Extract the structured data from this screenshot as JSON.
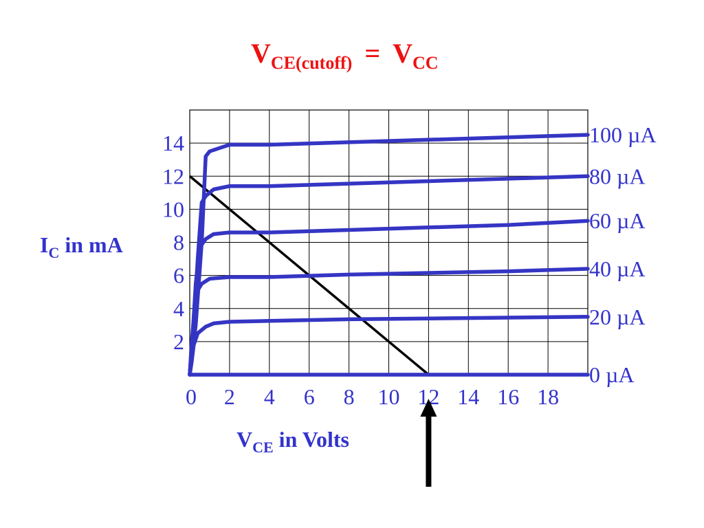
{
  "chart_data": {
    "type": "line",
    "title": {
      "main": "V",
      "sub": "CE(cutoff)",
      "eq": "=",
      "main2": "V",
      "sub2": "CC"
    },
    "xlabel": {
      "main": "V",
      "sub": "CE",
      "rest": " in Volts"
    },
    "ylabel": {
      "main": "I",
      "sub": "C",
      "rest": " in mA"
    },
    "xlim": [
      0,
      20
    ],
    "ylim": [
      0,
      16
    ],
    "x_ticks": [
      0,
      2,
      4,
      6,
      8,
      10,
      12,
      14,
      16,
      18
    ],
    "y_ticks": [
      2,
      4,
      6,
      8,
      10,
      12,
      14
    ],
    "grid": true,
    "colors": {
      "curves": "#3535c4",
      "text": "#3333cc",
      "title": "#ee1111",
      "load_line": "#000000",
      "grid": "#000000"
    },
    "series": [
      {
        "name": "100 µA",
        "x": [
          0,
          0.3,
          0.6,
          0.8,
          1.0,
          1.5,
          2,
          4,
          8,
          12,
          16,
          20
        ],
        "y": [
          0,
          3,
          8,
          13.2,
          13.5,
          13.7,
          13.9,
          13.9,
          14.05,
          14.2,
          14.35,
          14.5
        ]
      },
      {
        "name": "80 µA",
        "x": [
          0,
          0.2,
          0.4,
          0.6,
          0.8,
          1.2,
          2,
          4,
          8,
          12,
          16,
          20
        ],
        "y": [
          0,
          3,
          7,
          10.4,
          10.8,
          11.2,
          11.4,
          11.4,
          11.55,
          11.7,
          11.85,
          12
        ]
      },
      {
        "name": "60 µA",
        "x": [
          0,
          0.15,
          0.3,
          0.5,
          0.8,
          1.2,
          2,
          4,
          8,
          12,
          16,
          20
        ],
        "y": [
          0,
          2.5,
          5.5,
          7.7,
          8.2,
          8.5,
          8.6,
          8.6,
          8.75,
          8.9,
          9.05,
          9.3
        ]
      },
      {
        "name": "40 µA",
        "x": [
          0,
          0.1,
          0.25,
          0.4,
          0.6,
          1.0,
          2,
          4,
          8,
          12,
          16,
          20
        ],
        "y": [
          0,
          2,
          4,
          5.1,
          5.5,
          5.8,
          5.9,
          5.9,
          6.05,
          6.15,
          6.25,
          6.4
        ]
      },
      {
        "name": "20 µA",
        "x": [
          0,
          0.1,
          0.2,
          0.4,
          0.8,
          1.2,
          2,
          4,
          8,
          12,
          16,
          20
        ],
        "y": [
          0,
          0.8,
          1.8,
          2.5,
          2.9,
          3.1,
          3.2,
          3.25,
          3.35,
          3.4,
          3.45,
          3.5
        ]
      },
      {
        "name": "0 µA",
        "x": [
          0,
          20
        ],
        "y": [
          0,
          0
        ]
      }
    ],
    "load_line": {
      "x": [
        0,
        12
      ],
      "y": [
        12,
        0
      ]
    },
    "arrow_at_x": 12
  }
}
